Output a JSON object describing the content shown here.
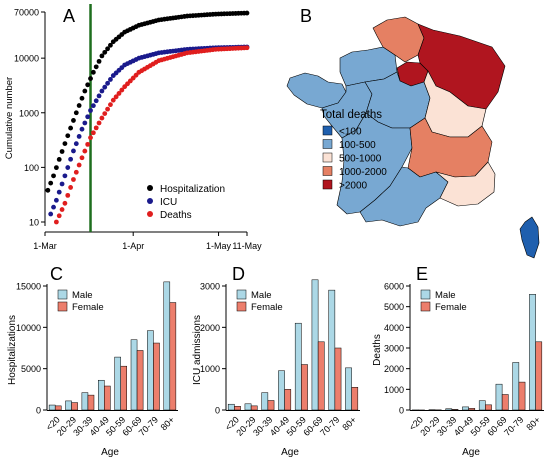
{
  "panels": {
    "A": "A",
    "B": "B",
    "C": "C",
    "D": "D",
    "E": "E"
  },
  "colors": {
    "hospitalization": "#000000",
    "icu": "#1a1a8c",
    "deaths": "#e01e1e",
    "lockdown_line": "#1e6e1e",
    "male": "#acd8e6",
    "female": "#ec7e6c"
  },
  "chart_data": [
    {
      "id": "A",
      "type": "scatter",
      "scale": "log",
      "ylabel": "Cumulative number",
      "x_ticks": [
        "1-Mar",
        "1-Apr",
        "1-May",
        "11-May"
      ],
      "x_tick_days": [
        0,
        31,
        61,
        71
      ],
      "y_ticks": [
        "10",
        "100",
        "1000",
        "10000",
        "70000"
      ],
      "y_tick_values": [
        10,
        100,
        1000,
        10000,
        70000
      ],
      "ylim": [
        10,
        70000
      ],
      "xlim_days": [
        0,
        71
      ],
      "reference_line_day": 16,
      "legend_position": "bottom-right",
      "series": [
        {
          "name": "Hospitalization",
          "start_day": 1,
          "end_day": 71,
          "points_day_value": [
            [
              1,
              38
            ],
            [
              3,
              70
            ],
            [
              5,
              140
            ],
            [
              8,
              380
            ],
            [
              11,
              1000
            ],
            [
              14,
              2500
            ],
            [
              17,
              5500
            ],
            [
              20,
              11000
            ],
            [
              24,
              20000
            ],
            [
              28,
              30000
            ],
            [
              33,
              40000
            ],
            [
              40,
              50000
            ],
            [
              50,
              59000
            ],
            [
              60,
              64000
            ],
            [
              71,
              67000
            ]
          ]
        },
        {
          "name": "ICU",
          "start_day": 2,
          "end_day": 71,
          "points_day_value": [
            [
              2,
              14
            ],
            [
              4,
              25
            ],
            [
              7,
              70
            ],
            [
              10,
              200
            ],
            [
              13,
              500
            ],
            [
              16,
              1100
            ],
            [
              20,
              2500
            ],
            [
              24,
              4800
            ],
            [
              28,
              7500
            ],
            [
              33,
              10000
            ],
            [
              40,
              12500
            ],
            [
              50,
              14500
            ],
            [
              60,
              15500
            ],
            [
              71,
              16000
            ]
          ]
        },
        {
          "name": "Deaths",
          "start_day": 4,
          "end_day": 71,
          "points_day_value": [
            [
              4,
              10
            ],
            [
              7,
              22
            ],
            [
              10,
              60
            ],
            [
              13,
              150
            ],
            [
              16,
              350
            ],
            [
              20,
              800
            ],
            [
              24,
              1700
            ],
            [
              28,
              3000
            ],
            [
              33,
              5500
            ],
            [
              40,
              9000
            ],
            [
              50,
              12500
            ],
            [
              60,
              14500
            ],
            [
              71,
              15500
            ]
          ]
        }
      ]
    },
    {
      "id": "B",
      "type": "map",
      "legend_title": "Total deaths",
      "legend": [
        {
          "label": "<100",
          "color": "#1f5fae"
        },
        {
          "label": "100-500",
          "color": "#78a8d2"
        },
        {
          "label": "500-1000",
          "color": "#fbe2d5"
        },
        {
          "label": "1000-2000",
          "color": "#e58063"
        },
        {
          "label": ">2000",
          "color": "#b0151f"
        }
      ]
    },
    {
      "id": "C",
      "type": "bar",
      "ylabel": "Hospitalizations",
      "xlabel": "Age",
      "categories": [
        "<20",
        "20-29",
        "30-39",
        "40-49",
        "50-59",
        "60-69",
        "70-79",
        "80+"
      ],
      "ylim": [
        0,
        15000
      ],
      "y_ticks": [
        0,
        5000,
        10000,
        15000
      ],
      "series": [
        {
          "name": "Male",
          "values": [
            600,
            1100,
            2100,
            3600,
            6400,
            8500,
            9600,
            15500
          ]
        },
        {
          "name": "Female",
          "values": [
            500,
            900,
            1800,
            2900,
            5300,
            7200,
            8100,
            13000
          ]
        }
      ]
    },
    {
      "id": "D",
      "type": "bar",
      "ylabel": "ICU admissions",
      "xlabel": "Age",
      "categories": [
        "<20",
        "20-29",
        "30-39",
        "40-49",
        "50-59",
        "60-69",
        "70-79",
        "80+"
      ],
      "ylim": [
        0,
        3000
      ],
      "y_ticks": [
        0,
        1000,
        2000,
        3000
      ],
      "series": [
        {
          "name": "Male",
          "values": [
            140,
            150,
            420,
            950,
            2100,
            3150,
            2900,
            1020
          ]
        },
        {
          "name": "Female",
          "values": [
            90,
            100,
            230,
            500,
            1100,
            1650,
            1500,
            550
          ]
        }
      ]
    },
    {
      "id": "E",
      "type": "bar",
      "ylabel": "Deaths",
      "xlabel": "Age",
      "categories": [
        "<20",
        "20-29",
        "30-39",
        "40-49",
        "50-59",
        "60-69",
        "70-79",
        "80+"
      ],
      "ylim": [
        0,
        6000
      ],
      "y_ticks": [
        0,
        1000,
        2000,
        3000,
        4000,
        5000,
        6000
      ],
      "series": [
        {
          "name": "Male",
          "values": [
            5,
            15,
            60,
            150,
            450,
            1250,
            2300,
            5600
          ]
        },
        {
          "name": "Female",
          "values": [
            3,
            8,
            30,
            80,
            250,
            750,
            1350,
            3300
          ]
        }
      ]
    }
  ]
}
